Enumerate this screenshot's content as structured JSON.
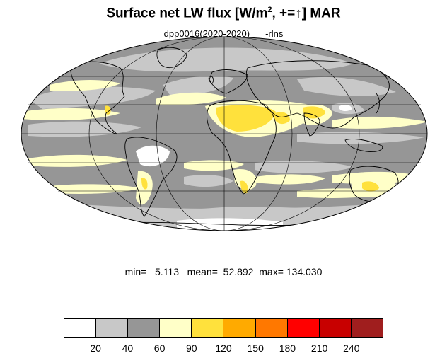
{
  "title": {
    "text": "Surface net LW flux [W/m",
    "sup": "2",
    "text2": ", +=",
    "arrow": "↑",
    "text3": "]  MAR"
  },
  "subtitle": {
    "run": "dpp0016(2020-2020)",
    "var": "-rlns"
  },
  "stats": {
    "text": "min=   5.113   mean=  52.892  max= 134.030"
  },
  "colorbar": {
    "colors": [
      "#ffffff",
      "#c8c8c8",
      "#969696",
      "#ffffc8",
      "#ffe13c",
      "#ffaa00",
      "#ff7800",
      "#ff0000",
      "#c80000",
      "#a01e1e"
    ],
    "labels": [
      "20",
      "40",
      "60",
      "90",
      "120",
      "150",
      "180",
      "210",
      "240"
    ]
  },
  "map": {
    "projection": "Mollweide",
    "background_color": "#969696",
    "graticule": {
      "lon_step": 60,
      "lat_step": 30
    }
  }
}
